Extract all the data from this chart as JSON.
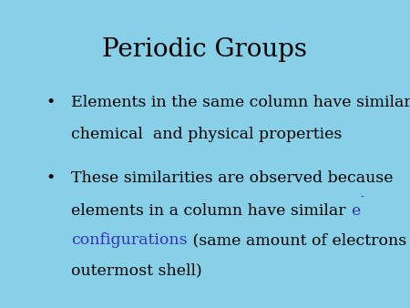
{
  "title": "Periodic Groups",
  "title_fontsize": 20,
  "title_color": "#000000",
  "background_color": "#ffffff",
  "border_color": "#88d0e8",
  "text_color": "#000000",
  "link_color": "#3333bb",
  "text_fontsize": 12.5,
  "bullet_char": "•",
  "bullet1_line1": "Elements in the same column have similar",
  "bullet1_line2": "chemical  and physical properties",
  "bullet2_line1": "These similarities are observed because",
  "bullet2_line2": "elements in a column have similar ",
  "bullet2_e": "e",
  "bullet2_minus": "-",
  "bullet2_line3": "configurations",
  "bullet2_line4": " (same amount of electrons in",
  "bullet2_line5": "outermost shell)"
}
